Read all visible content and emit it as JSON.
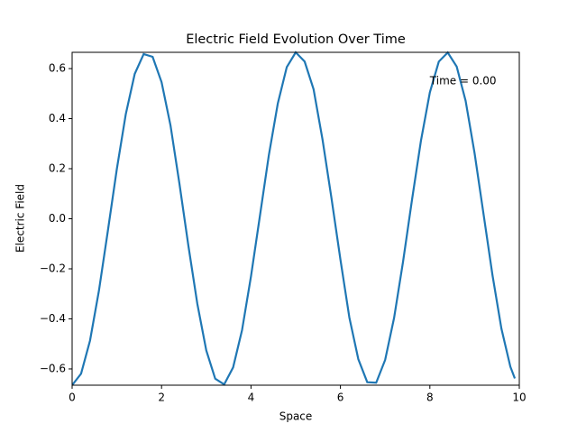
{
  "chart_data": {
    "type": "line",
    "title": "Electric Field Evolution Over Time",
    "x_label": "Space",
    "y_label": "Electric Field",
    "annotation": {
      "text": "Time = 0.00",
      "x": 8,
      "y": 0.55
    },
    "x": [
      0,
      0.2,
      0.4,
      0.6,
      0.8,
      1.0,
      1.2,
      1.4,
      1.6,
      1.8,
      2.0,
      2.2,
      2.4,
      2.6,
      2.8,
      3.0,
      3.2,
      3.4,
      3.6,
      3.8,
      4.0,
      4.2,
      4.4,
      4.6,
      4.8,
      5.0,
      5.2,
      5.4,
      5.6,
      5.8,
      6.0,
      6.2,
      6.4,
      6.6,
      6.8,
      7.0,
      7.2,
      7.4,
      7.6,
      7.8,
      8.0,
      8.2,
      8.4,
      8.6,
      8.8,
      9.0,
      9.2,
      9.4,
      9.6,
      9.8,
      9.9
    ],
    "series": [
      {
        "color": "#1f77b4",
        "values": [
          -0.665,
          -0.619,
          -0.487,
          -0.287,
          -0.047,
          0.199,
          0.418,
          0.579,
          0.658,
          0.647,
          0.546,
          0.373,
          0.14,
          -0.108,
          -0.34,
          -0.526,
          -0.639,
          -0.662,
          -0.594,
          -0.445,
          -0.23,
          0.012,
          0.255,
          0.461,
          0.606,
          0.665,
          0.628,
          0.517,
          0.316,
          0.082,
          -0.163,
          -0.395,
          -0.561,
          -0.653,
          -0.655,
          -0.564,
          -0.396,
          -0.172,
          0.075,
          0.311,
          0.505,
          0.628,
          0.664,
          0.608,
          0.471,
          0.262,
          0.019,
          -0.225,
          -0.439,
          -0.591,
          -0.638
        ]
      }
    ],
    "xlim": [
      0,
      10
    ],
    "xticks": [
      0,
      2,
      4,
      6,
      8,
      10
    ],
    "ylim": [
      -0.665,
      0.665
    ],
    "yticks": [
      {
        "value": -0.6,
        "label": "−0.6"
      },
      {
        "value": -0.4,
        "label": "−0.4"
      },
      {
        "value": -0.2,
        "label": "−0.2"
      },
      {
        "value": 0,
        "label": "0.0"
      },
      {
        "value": 0.2,
        "label": "0.2"
      },
      {
        "value": 0.4,
        "label": "0.4"
      },
      {
        "value": 0.6,
        "label": "0.6"
      }
    ]
  }
}
